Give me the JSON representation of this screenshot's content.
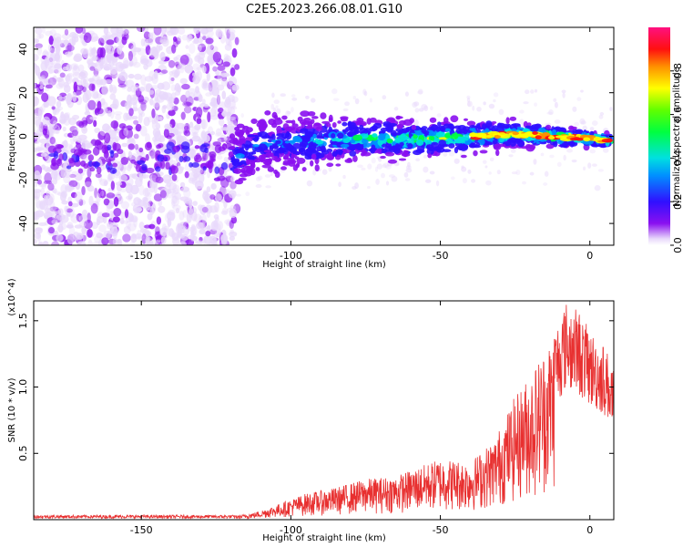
{
  "title": "C2E5.2023.266.08.01.G10",
  "chart_data": [
    {
      "type": "heatmap",
      "xlabel": "Height of straight line (km)",
      "ylabel": "Frequency (Hz)",
      "xlim": [
        -186,
        8
      ],
      "ylim": [
        -50,
        50
      ],
      "xticks": [
        -150,
        -100,
        -50,
        0
      ],
      "yticks": [
        -40,
        -20,
        0,
        20,
        40
      ],
      "colorbar": {
        "label": "Normalized spectral amplitude",
        "range": [
          0,
          1
        ],
        "ticks": [
          0.0,
          0.2,
          0.4,
          0.6,
          0.8
        ],
        "colormap": "rainbow (purple-blue-cyan-green-yellow-red-magenta)"
      },
      "description_series": [
        {
          "x": -120,
          "y": -12
        },
        {
          "x": -110,
          "y": -3
        },
        {
          "x": -100,
          "y": -3
        },
        {
          "x": -75,
          "y": -1
        },
        {
          "x": -50,
          "y": -1
        },
        {
          "x": -25,
          "y": 1
        },
        {
          "x": 0,
          "y": -1
        },
        {
          "x": 7,
          "y": -2
        }
      ]
    },
    {
      "type": "line",
      "xlabel": "Height of straight line (km)",
      "ylabel": "SNR (10 * v/v)",
      "yscale_note": "(x10^4)",
      "xlim": [
        -186,
        8
      ],
      "ylim": [
        0,
        1.65
      ],
      "xticks": [
        -150,
        -100,
        -50,
        0
      ],
      "yticks": [
        0.5,
        1.0,
        1.5
      ],
      "color": "#e83030",
      "envelope": [
        {
          "x": -186,
          "y": 0.02
        },
        {
          "x": -120,
          "y": 0.02
        },
        {
          "x": -112,
          "y": 0.05
        },
        {
          "x": -105,
          "y": 0.1
        },
        {
          "x": -95,
          "y": 0.18
        },
        {
          "x": -85,
          "y": 0.22
        },
        {
          "x": -75,
          "y": 0.28
        },
        {
          "x": -65,
          "y": 0.3
        },
        {
          "x": -55,
          "y": 0.38
        },
        {
          "x": -50,
          "y": 0.42
        },
        {
          "x": -40,
          "y": 0.4
        },
        {
          "x": -32,
          "y": 0.55
        },
        {
          "x": -25,
          "y": 0.85
        },
        {
          "x": -20,
          "y": 1.0
        },
        {
          "x": -12,
          "y": 1.3
        },
        {
          "x": -8,
          "y": 1.5
        },
        {
          "x": -4,
          "y": 1.45
        },
        {
          "x": 0,
          "y": 1.3
        },
        {
          "x": 5,
          "y": 1.2
        },
        {
          "x": 8,
          "y": 1.05
        }
      ]
    }
  ]
}
